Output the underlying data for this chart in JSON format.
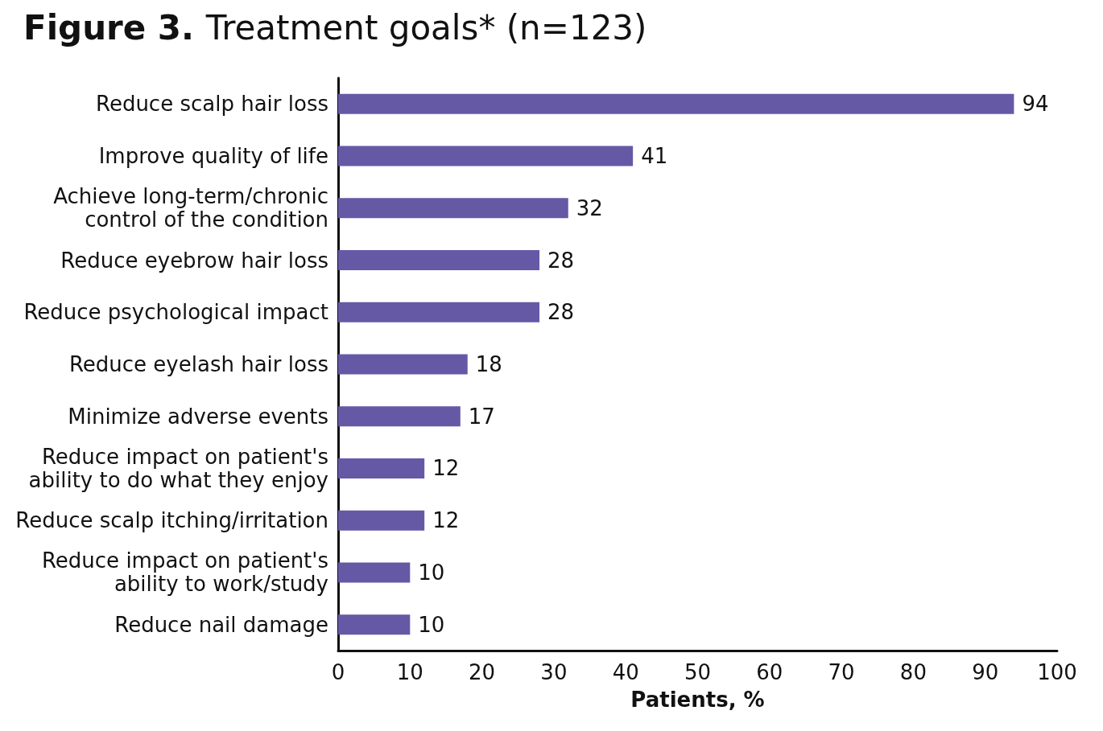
{
  "chart_data": {
    "type": "bar",
    "orientation": "horizontal",
    "title": "Figure 3. Treatment goals* (n=123)",
    "xlabel": "Patients, %",
    "categories": [
      "Reduce scalp hair loss",
      "Improve quality of life",
      "Achieve long-term/chronic\ncontrol of the condition",
      "Reduce eyebrow hair loss",
      "Reduce psychological impact",
      "Reduce eyelash hair loss",
      "Minimize adverse events",
      "Reduce impact on patient's\nability to do what they enjoy",
      "Reduce scalp itching/irritation",
      "Reduce impact on patient's\nability to work/study",
      "Reduce nail damage"
    ],
    "values": [
      94,
      41,
      32,
      28,
      28,
      18,
      17,
      12,
      12,
      10,
      10
    ],
    "color": "#6559a6",
    "xlim": [
      0,
      100
    ],
    "xticks": [
      0,
      10,
      20,
      30,
      40,
      50,
      60,
      70,
      80,
      90,
      100
    ],
    "grid": false,
    "data_labels": true
  }
}
